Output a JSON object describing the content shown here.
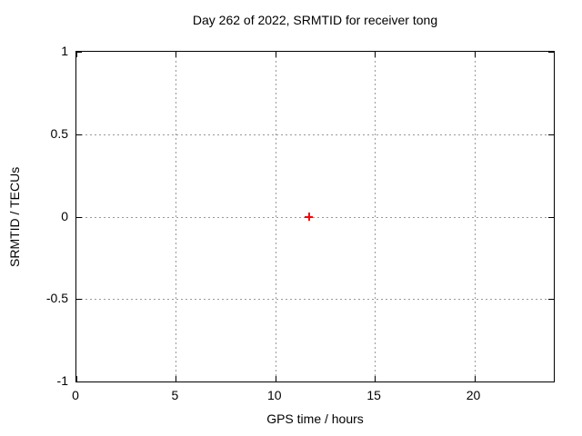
{
  "colors": {
    "background": "#ffffff",
    "axis": "#000000",
    "grid": "#999999",
    "marker": "#ff0000"
  },
  "chart_data": {
    "type": "scatter",
    "title": "Day 262 of 2022, SRMTID for receiver tong",
    "xlabel": "GPS time / hours",
    "ylabel": "SRMTID / TECUs",
    "xlim": [
      0,
      24
    ],
    "ylim": [
      -1,
      1
    ],
    "x_ticks": [
      0,
      5,
      10,
      15,
      20
    ],
    "y_ticks": [
      1,
      0.5,
      0,
      -0.5,
      -1
    ],
    "grid": true,
    "grid_style": "dotted",
    "legend": false,
    "tick_style": "inward-mirrored",
    "series": [
      {
        "name": "SRMTID",
        "marker": "plus",
        "color": "#ff0000",
        "points": [
          {
            "x": 11.7,
            "y": 0.0
          }
        ]
      }
    ]
  }
}
